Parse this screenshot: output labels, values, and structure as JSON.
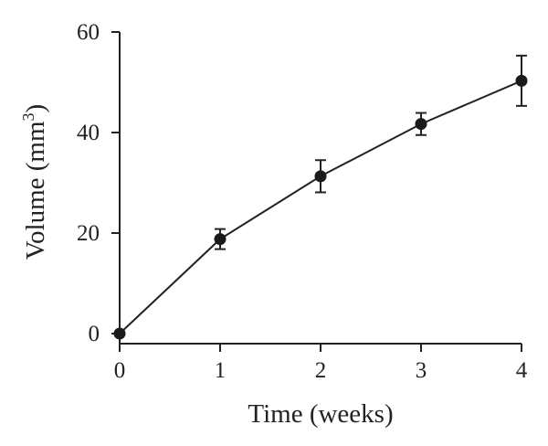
{
  "chart_data": {
    "type": "line",
    "title": "",
    "xlabel": "Time (weeks)",
    "ylabel_main": "Volume (mm",
    "ylabel_sup": "3",
    "ylabel_end": ")",
    "xlim": [
      0,
      4
    ],
    "ylim": [
      0,
      60
    ],
    "xticks": [
      0,
      1,
      2,
      3,
      4
    ],
    "yticks": [
      0,
      20,
      40,
      60
    ],
    "grid": false,
    "legend": "none",
    "series": [
      {
        "x": [
          0,
          1,
          2,
          3,
          4
        ],
        "y": [
          0,
          18.8,
          31.3,
          41.7,
          50.3
        ],
        "error": [
          0,
          2.0,
          3.2,
          2.2,
          5.0
        ],
        "color": "#1a1a1a",
        "marker": "circle"
      }
    ]
  }
}
